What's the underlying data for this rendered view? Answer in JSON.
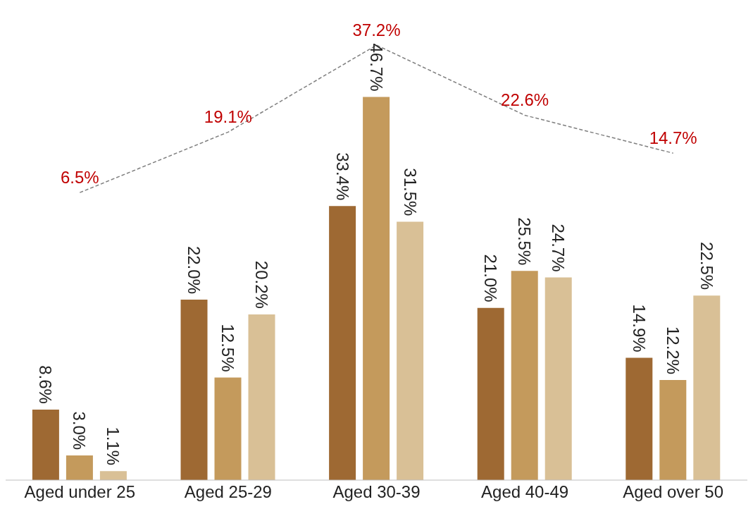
{
  "chart_data": {
    "type": "bar",
    "categories": [
      "Aged under 25",
      "Aged 25-29",
      "Aged 30-39",
      "Aged 40-49",
      "Aged over 50"
    ],
    "series": [
      {
        "color": "#9e6933",
        "values": [
          8.6,
          22.0,
          33.4,
          21.0,
          14.9
        ],
        "value_labels": [
          "8.6%",
          "22.0%",
          "33.4%",
          "21.0%",
          "14.9%"
        ]
      },
      {
        "color": "#c49a5c",
        "values": [
          3.0,
          12.5,
          46.7,
          25.5,
          12.2
        ],
        "value_labels": [
          "3.0%",
          "12.5%",
          "46.7%",
          "25.5%",
          "12.2%"
        ]
      },
      {
        "color": "#d9c096",
        "values": [
          1.1,
          20.2,
          31.5,
          24.7,
          22.5
        ],
        "value_labels": [
          "1.1%",
          "20.2%",
          "31.5%",
          "24.7%",
          "22.5%"
        ]
      },
      {
        "type": "line",
        "axis": "y2",
        "color": "#7f7f7f",
        "line_style": "dashed",
        "values": [
          6.5,
          19.1,
          37.2,
          22.6,
          14.7
        ],
        "value_labels": [
          "6.5%",
          "19.1%",
          "37.2%",
          "22.6%",
          "14.7%"
        ]
      }
    ],
    "tick_labels": "x"
  }
}
